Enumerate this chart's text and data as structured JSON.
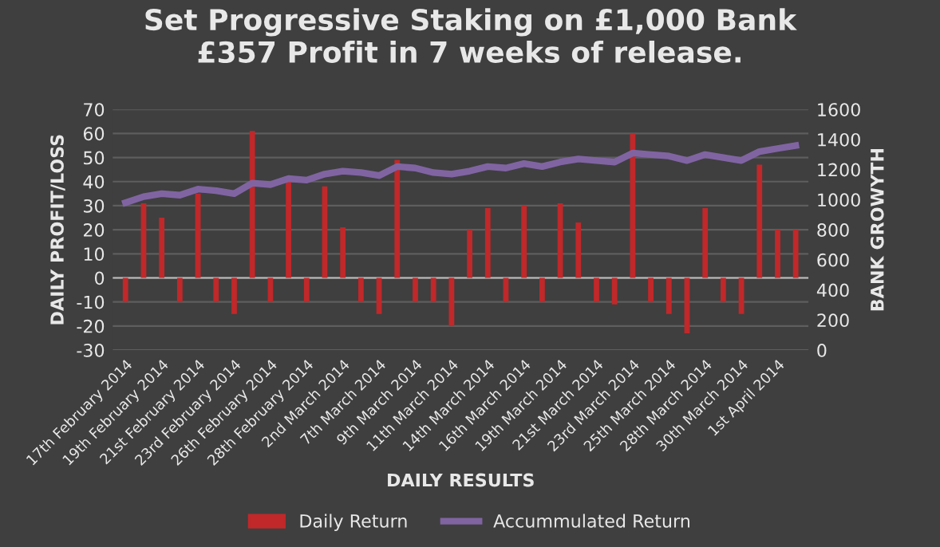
{
  "chart_data": {
    "type": "bar",
    "title": "Set Progressive Staking on £1,000 Bank\n£357 Profit in 7 weeks of release.",
    "xlabel": "DAILY RESULTS",
    "ylabel": "DAILY PROFIT/LOSS",
    "y2label": "BANK GROWYTH",
    "categories": [
      "17th February 2014",
      null,
      "19th February 2014",
      null,
      "21st February 2014",
      null,
      "23rd February 2014",
      null,
      "26th February 2014",
      null,
      "28th February 2014",
      null,
      "2nd March 2014",
      null,
      "7th March 2014",
      null,
      "9th March 2014",
      null,
      "11th March 2014",
      null,
      "14th March 2014",
      null,
      "16th March 2014",
      null,
      "19th March 2014",
      null,
      "21st March 2014",
      null,
      "23rd March 2014",
      null,
      "25th March 2014",
      null,
      "28th March 2014",
      null,
      "30th March 2014",
      null,
      "1st April 2014",
      null
    ],
    "series": [
      {
        "name": "Daily Return",
        "color": "#c0282a",
        "values": [
          -10,
          31,
          25,
          -10,
          35,
          -10,
          -15,
          61,
          -10,
          40,
          -10,
          38,
          21,
          -10,
          -15,
          49,
          -10,
          -10,
          -20,
          20,
          29,
          -10,
          30,
          -10,
          31,
          23,
          -10,
          -11,
          60,
          -10,
          -15,
          -23,
          29,
          -10,
          -15,
          47,
          20,
          20
        ]
      },
      {
        "name": "Accummulated Return",
        "type": "line",
        "axis": "y2",
        "color": "#8064a2",
        "values": [
          980,
          1020,
          1040,
          1030,
          1070,
          1060,
          1040,
          1110,
          1100,
          1140,
          1130,
          1170,
          1190,
          1180,
          1160,
          1220,
          1210,
          1180,
          1170,
          1190,
          1220,
          1210,
          1240,
          1220,
          1250,
          1270,
          1260,
          1250,
          1310,
          1300,
          1290,
          1260,
          1300,
          1280,
          1260,
          1320,
          1340,
          1360
        ]
      }
    ],
    "ylim": [
      -30,
      70
    ],
    "yticks": [
      -30,
      -20,
      -10,
      0,
      10,
      20,
      30,
      40,
      50,
      60,
      70
    ],
    "y2lim": [
      0,
      1600
    ],
    "y2ticks": [
      0,
      200,
      400,
      600,
      800,
      1000,
      1200,
      1400,
      1600
    ],
    "grid": "y",
    "legend": "bottom"
  }
}
